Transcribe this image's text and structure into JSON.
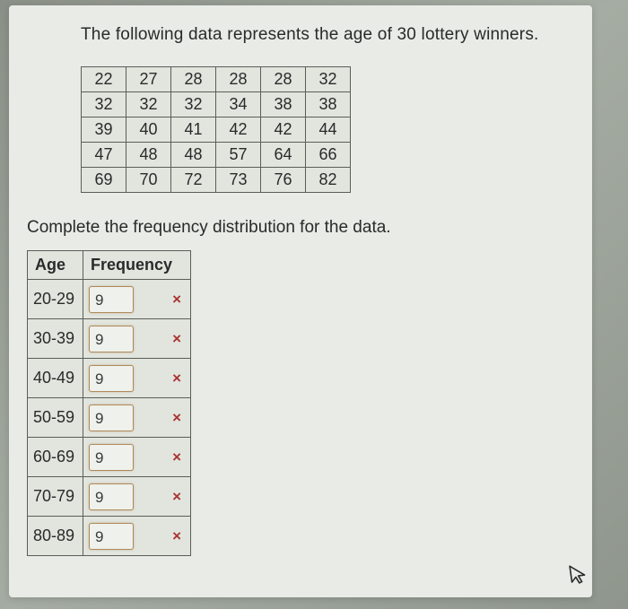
{
  "prompt": "The following data represents the age of 30 lottery winners.",
  "data_table": {
    "rows": [
      [
        "22",
        "27",
        "28",
        "28",
        "28",
        "32"
      ],
      [
        "32",
        "32",
        "32",
        "34",
        "38",
        "38"
      ],
      [
        "39",
        "40",
        "41",
        "42",
        "42",
        "44"
      ],
      [
        "47",
        "48",
        "48",
        "57",
        "64",
        "66"
      ],
      [
        "69",
        "70",
        "72",
        "73",
        "76",
        "82"
      ]
    ],
    "border_color": "#5a5e58",
    "cell_bg": "#e1e5de",
    "font_size": 18
  },
  "sub_prompt": "Complete the frequency distribution for the data.",
  "freq_table": {
    "headers": [
      "Age",
      "Frequency"
    ],
    "rows": [
      {
        "age": "20-29",
        "value": "9",
        "mark": "×"
      },
      {
        "age": "30-39",
        "value": "9",
        "mark": "×"
      },
      {
        "age": "40-49",
        "value": "9",
        "mark": "×"
      },
      {
        "age": "50-59",
        "value": "9",
        "mark": "×"
      },
      {
        "age": "60-69",
        "value": "9",
        "mark": "×"
      },
      {
        "age": "70-79",
        "value": "9",
        "mark": "×"
      },
      {
        "age": "80-89",
        "value": "9",
        "mark": "×"
      }
    ],
    "input_border_color": "#b08a5a",
    "mark_color": "#a33"
  },
  "cursor_glyph": "↖"
}
